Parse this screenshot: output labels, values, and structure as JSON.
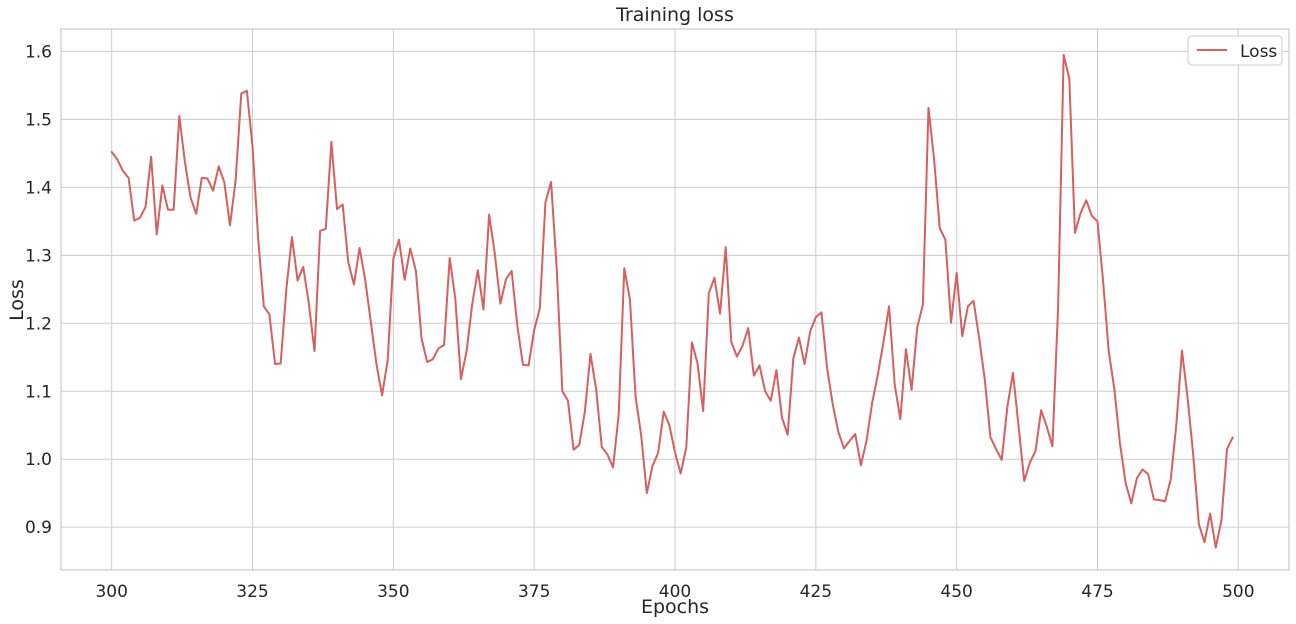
{
  "chart_data": {
    "type": "line",
    "title": "Training loss",
    "xlabel": "Epochs",
    "ylabel": "Loss",
    "xlim": [
      291,
      509
    ],
    "ylim": [
      0.837,
      1.633
    ],
    "xticks": [
      300,
      325,
      350,
      375,
      400,
      425,
      450,
      475,
      500
    ],
    "yticks": [
      0.9,
      1.0,
      1.1,
      1.2,
      1.3,
      1.4,
      1.5,
      1.6
    ],
    "ytick_labels": [
      "0.9",
      "1.0",
      "1.1",
      "1.2",
      "1.3",
      "1.4",
      "1.5",
      "1.6"
    ],
    "grid": true,
    "legend": {
      "placement": "top-right"
    },
    "series": [
      {
        "name": "Loss",
        "color": "#d65f5f",
        "x_start": 300,
        "x_step": 1,
        "values": [
          1.452,
          1.441,
          1.424,
          1.414,
          1.351,
          1.355,
          1.371,
          1.445,
          1.331,
          1.403,
          1.367,
          1.367,
          1.505,
          1.437,
          1.385,
          1.361,
          1.414,
          1.413,
          1.395,
          1.431,
          1.407,
          1.344,
          1.41,
          1.538,
          1.542,
          1.46,
          1.325,
          1.225,
          1.213,
          1.14,
          1.141,
          1.25,
          1.327,
          1.263,
          1.283,
          1.229,
          1.159,
          1.336,
          1.339,
          1.467,
          1.368,
          1.375,
          1.29,
          1.257,
          1.311,
          1.264,
          1.202,
          1.14,
          1.094,
          1.146,
          1.295,
          1.323,
          1.264,
          1.31,
          1.277,
          1.178,
          1.143,
          1.147,
          1.163,
          1.168,
          1.296,
          1.236,
          1.118,
          1.159,
          1.228,
          1.278,
          1.22,
          1.36,
          1.303,
          1.229,
          1.265,
          1.277,
          1.197,
          1.139,
          1.138,
          1.19,
          1.222,
          1.378,
          1.408,
          1.281,
          1.1,
          1.086,
          1.014,
          1.021,
          1.07,
          1.155,
          1.103,
          1.018,
          1.007,
          0.988,
          1.065,
          1.281,
          1.235,
          1.092,
          1.035,
          0.95,
          0.99,
          1.009,
          1.07,
          1.05,
          1.01,
          0.979,
          1.017,
          1.172,
          1.141,
          1.071,
          1.244,
          1.267,
          1.214,
          1.312,
          1.172,
          1.151,
          1.167,
          1.193,
          1.123,
          1.138,
          1.1,
          1.086,
          1.131,
          1.061,
          1.036,
          1.148,
          1.179,
          1.14,
          1.188,
          1.209,
          1.216,
          1.134,
          1.081,
          1.04,
          1.016,
          1.027,
          1.037,
          0.991,
          1.027,
          1.083,
          1.124,
          1.172,
          1.225,
          1.11,
          1.059,
          1.162,
          1.102,
          1.194,
          1.227,
          1.517,
          1.441,
          1.34,
          1.323,
          1.201,
          1.274,
          1.181,
          1.225,
          1.233,
          1.178,
          1.117,
          1.032,
          1.015,
          0.999,
          1.077,
          1.127,
          1.048,
          0.968,
          0.995,
          1.012,
          1.072,
          1.048,
          1.019,
          1.221,
          1.595,
          1.56,
          1.333,
          1.362,
          1.381,
          1.358,
          1.35,
          1.262,
          1.159,
          1.103,
          1.023,
          0.965,
          0.935,
          0.972,
          0.985,
          0.978,
          0.941,
          0.94,
          0.938,
          0.97,
          1.051,
          1.16,
          1.09,
          1.006,
          0.904,
          0.878,
          0.92,
          0.87,
          0.91,
          1.015,
          1.032
        ]
      }
    ]
  }
}
